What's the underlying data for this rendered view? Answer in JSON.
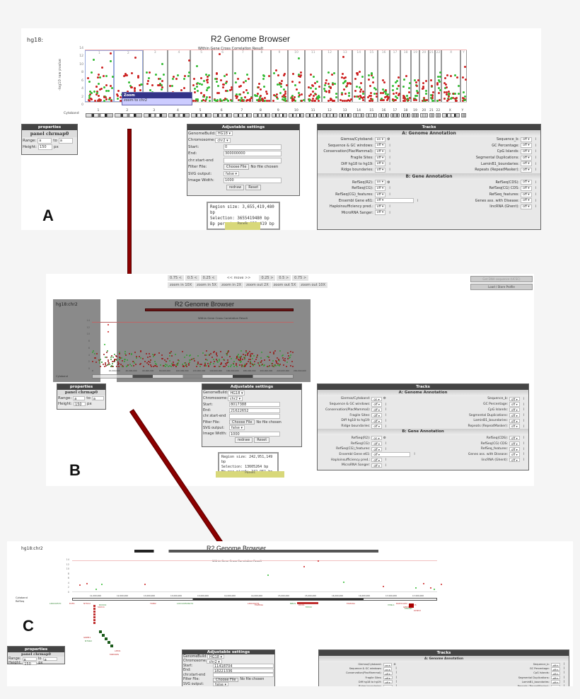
{
  "panel_a": {
    "letter": "A",
    "db_label": "hg18:",
    "title": "R2 Genome Browser",
    "subtitle": "Within Gene Cross Correlation Result",
    "y_axis_label": "-log10 raw pvalue",
    "y_ticks": [
      "14",
      "12",
      "10",
      "8",
      "6",
      "4",
      "2",
      "0"
    ],
    "chromosomes": [
      "1",
      "2",
      "3",
      "4",
      "5",
      "6",
      "7",
      "8",
      "9",
      "10",
      "11",
      "12",
      "13",
      "14",
      "15",
      "16",
      "17",
      "18",
      "19",
      "20",
      "21",
      "22",
      "X",
      "Y"
    ],
    "cytoband_label": "Cytoband",
    "tooltip": {
      "title": "Zoom",
      "text": "zoom to chr2"
    },
    "properties": {
      "header": "properties",
      "panel": "panel chrmap0",
      "range_label": "Range:",
      "range_from": "a",
      "to_label": "to",
      "range_to": "a",
      "height_label": "Height:",
      "height_value": "150",
      "height_unit": "px"
    },
    "settings": {
      "header": "Adjustable settings",
      "genome_build_label": "GenomeBuild:",
      "genome_build": "HG18",
      "chromosome_label": "Chromosome:",
      "chromosome": "chr2",
      "start_label": "Start:",
      "start": "0",
      "end_label": "End:",
      "end": "300000000",
      "chr_label": "chr:start-end",
      "chr_value": "",
      "filter_label": "Filter File:",
      "choose_file": "Choose File",
      "no_file": "No file chosen",
      "svg_label": "SVG output:",
      "svg_value": "false",
      "width_label": "Image Width:",
      "width_value": "1000",
      "redraw": "redraw",
      "reset": "Reset"
    },
    "stats": {
      "region": "Region size: 3,655,419,480 bp",
      "selection": "Selection: 3655419480 bp",
      "bp_per_pixel": "Bp per pixel: 3,655,419 bp"
    },
    "panels_tab": "Panels"
  },
  "panel_b": {
    "letter": "B",
    "db_label": "hg18:chr2",
    "title": "R2 Genome Browser",
    "subtitle": "Within Gene Cross Correlation Result",
    "y_ticks": [
      "14",
      "12",
      "10",
      "8",
      "6",
      "4",
      "2",
      "0"
    ],
    "x_ticks": [
      "0",
      "20,000,000",
      "40,000,000",
      "60,000,000",
      "80,000,000",
      "100,000,000",
      "120,000,000",
      "140,000,000",
      "160,000,000",
      "180,000,000",
      "200,000,000",
      "220,000,000",
      "240,000,000"
    ],
    "cytoband_label": "Cytoband",
    "nav": {
      "move_left": [
        "0.75 <",
        "0.5 <",
        "0.25 <"
      ],
      "move_label": "<< move >>",
      "move_right": [
        "0.25 >",
        "0.5 >",
        "0.75 >"
      ],
      "zoom": [
        "zoom in 10X",
        "zoom in 5X",
        "zoom in 2X",
        "zoom out 2X",
        "zoom out 5X",
        "zoom out 10X"
      ]
    },
    "get_dna": "Get DNA sequence (UCSC)",
    "load_store": "Load / Store Profile",
    "properties": {
      "header": "properties",
      "panel": "panel chrmap0",
      "range_label": "Range:",
      "range_from": "a",
      "to_label": "to",
      "range_to": "a",
      "height_label": "Height:",
      "height_value": "150",
      "height_unit": "px"
    },
    "settings": {
      "header": "Adjustable settings",
      "genome_build_label": "GenomeBuild:",
      "genome_build": "HG18",
      "chromosome_label": "Chromosome:",
      "chromosome": "chr2",
      "start_label": "Start:",
      "start": "8017388",
      "end_label": "End:",
      "end": "21622652",
      "chr_label": "chr:start-end",
      "chr_value": "",
      "filter_label": "Filter File:",
      "choose_file": "Choose File",
      "no_file": "No file chosen",
      "svg_label": "SVG output:",
      "svg_value": "false",
      "width_label": "Image Width:",
      "width_value": "1000",
      "redraw": "redraw",
      "reset": "Reset"
    },
    "stats": {
      "region": "Region size: 242,951,149 bp",
      "selection": "Selection: 13605264 bp",
      "bp_per_pixel": "Bp per pixel: 242,951 bp"
    },
    "panels_tab": "Panels"
  },
  "panel_c": {
    "letter": "C",
    "db_label": "hg18:chr2",
    "title": "R2 Genome Browser",
    "subtitle": "Within Gene Cross Correlation Result",
    "y_ticks": [
      "14",
      "12",
      "10",
      "8",
      "6",
      "4",
      "2",
      "0"
    ],
    "x_ticks": [
      "11,000,000",
      "12,000,000",
      "13,000,000",
      "13,000,000",
      "13,000,000",
      "14,000,000",
      "14,000,000",
      "15,000,000",
      "15,000,000",
      "16,000,000",
      "16,000,000",
      "17,000,000",
      "17,000,000"
    ],
    "cytoband_label": "Cytoband",
    "refseq_label": "RefSeq",
    "bands": [
      "p25.1",
      "p24.3",
      "p24.2"
    ],
    "genes": [
      "LINC00570",
      "E2F6",
      "NT5C2",
      "ROCK2",
      "SOX11",
      "TRIB2",
      "LOC100506474",
      "LINC00276",
      "FAM84A",
      "NBAS",
      "MYCNOS",
      "DDX1",
      "MYCN",
      "FAM49A",
      "RAD51AP2",
      "VSNL1",
      "SMC6",
      "GEN1",
      "MSGN1",
      "KCNS3",
      "GREB1",
      "NTSR2",
      "LPIN1",
      "MIR548S"
    ],
    "properties": {
      "header": "properties",
      "panel": "panel chrmap0",
      "range_label": "Range:",
      "range_from": "a",
      "to_label": "to",
      "range_to": "a",
      "height_label": "Height:",
      "height_value": "150",
      "height_unit": "px"
    },
    "settings": {
      "header": "Adjustable settings",
      "genome_build_label": "GenomeBuild:",
      "genome_build": "HG18",
      "chromosome_label": "Chromosome:",
      "chromosome": "chr2",
      "start_label": "Start:",
      "start": "11418704",
      "end_label": "End:",
      "end": "18221336",
      "chr_label": "chr:start-end",
      "filter_label": "Filter File:",
      "choose_file": "Choose File",
      "no_file": "No file chosen",
      "svg_label": "SVG output:",
      "svg_value": "false"
    }
  },
  "tracks": {
    "header": "Tracks",
    "section_a": "A: Genome Annotation",
    "section_b": "B: Gene Annotation",
    "a_left": [
      {
        "label": "Giemsa/Cytoband:",
        "value": "on"
      },
      {
        "label": "Sequence & GC windows:",
        "value": "off"
      },
      {
        "label": "Conservation(PlacMammal):",
        "value": "off"
      },
      {
        "label": "Fragile Sites:",
        "value": "off"
      },
      {
        "label": "Diff hg18 to hg19:",
        "value": "off"
      },
      {
        "label": "Ridge boundaries:",
        "value": "off"
      }
    ],
    "a_right": [
      {
        "label": "Sequence_b:",
        "value": "off"
      },
      {
        "label": "GC Percentage:",
        "value": "off"
      },
      {
        "label": "CpG Islands:",
        "value": "off"
      },
      {
        "label": "Segmental Duplications:",
        "value": "off"
      },
      {
        "label": "LaminB1_boundaries:",
        "value": "off"
      },
      {
        "label": "Repeats (RepeatMasker):",
        "value": "off"
      }
    ],
    "b_left": [
      {
        "label": "RefSeq(R2):",
        "value": "on"
      },
      {
        "label": "RefSeq(CG):",
        "value": "off"
      },
      {
        "label": "RefSeq(CG)_features:",
        "value": "off"
      },
      {
        "label": "Ensembl Gene e61:",
        "value": "off"
      },
      {
        "label": "Haploinsufficiency pred.:",
        "value": "off"
      },
      {
        "label": "MicroRNA Sanger:",
        "value": "off"
      }
    ],
    "b_right": [
      {
        "label": "RefSeq(CDS):",
        "value": "off"
      },
      {
        "label": "RefSeq(CG) CDS:",
        "value": "off"
      },
      {
        "label": "RefSeq_features:",
        "value": "off"
      },
      {
        "label": "Genes ass. with Disease:",
        "value": "off"
      },
      {
        "label": "lincRNA (Ghent):",
        "value": "off"
      }
    ],
    "c_seq_gc_value": "on"
  },
  "colors": {
    "arrow": "#8b0000",
    "dot_red": "#cc2222",
    "dot_green": "#33bb33",
    "header_bg": "#444444",
    "tooltip_bg": "#333388"
  }
}
